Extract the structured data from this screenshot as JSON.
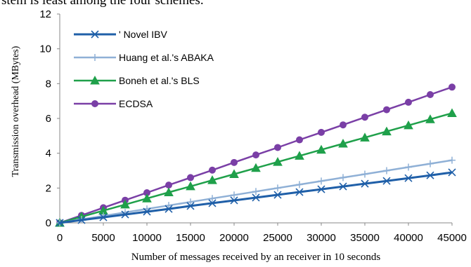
{
  "page": {
    "top_text": "stem is least among the four schemes."
  },
  "chart_data": {
    "type": "line",
    "title": "",
    "xlabel": "Number of messages received by an receiver in 10 seconds",
    "ylabel": "Transmission overhead (MBytes)",
    "xlim": [
      0,
      45000
    ],
    "ylim": [
      0,
      12
    ],
    "x_ticks": [
      "0",
      "5000",
      "10000",
      "15000",
      "20000",
      "25000",
      "30000",
      "35000",
      "40000",
      "45000"
    ],
    "y_ticks": [
      "0",
      "2",
      "4",
      "6",
      "8",
      "10",
      "12"
    ],
    "grid": false,
    "legend_position": "top-left",
    "x": [
      0,
      2500,
      5000,
      7500,
      10000,
      12500,
      15000,
      17500,
      20000,
      22500,
      25000,
      27500,
      30000,
      32500,
      35000,
      37500,
      40000,
      42500,
      45000
    ],
    "series": [
      {
        "name": "' Novel IBV",
        "color": "#1f5fa8",
        "marker": "x",
        "values": [
          0,
          0.16,
          0.32,
          0.48,
          0.64,
          0.8,
          0.97,
          1.13,
          1.29,
          1.45,
          1.61,
          1.77,
          1.93,
          2.09,
          2.25,
          2.41,
          2.57,
          2.73,
          2.9
        ]
      },
      {
        "name": "Huang et al.'s ABAKA",
        "color": "#8fb0d6",
        "marker": "plus",
        "values": [
          0,
          0.2,
          0.4,
          0.6,
          0.8,
          1.0,
          1.2,
          1.4,
          1.6,
          1.8,
          2.0,
          2.2,
          2.4,
          2.6,
          2.8,
          3.0,
          3.2,
          3.4,
          3.6
        ]
      },
      {
        "name": "Boneh et al.'s BLS",
        "color": "#1fa04a",
        "marker": "triangle",
        "values": [
          0,
          0.35,
          0.7,
          1.05,
          1.4,
          1.75,
          2.1,
          2.45,
          2.8,
          3.15,
          3.5,
          3.85,
          4.2,
          4.55,
          4.9,
          5.25,
          5.6,
          5.95,
          6.3
        ]
      },
      {
        "name": "ECDSA",
        "color": "#7a3fa6",
        "marker": "circle",
        "values": [
          0,
          0.43,
          0.87,
          1.3,
          1.73,
          2.17,
          2.6,
          3.03,
          3.47,
          3.9,
          4.33,
          4.77,
          5.2,
          5.63,
          6.07,
          6.5,
          6.93,
          7.37,
          7.8
        ]
      }
    ]
  }
}
